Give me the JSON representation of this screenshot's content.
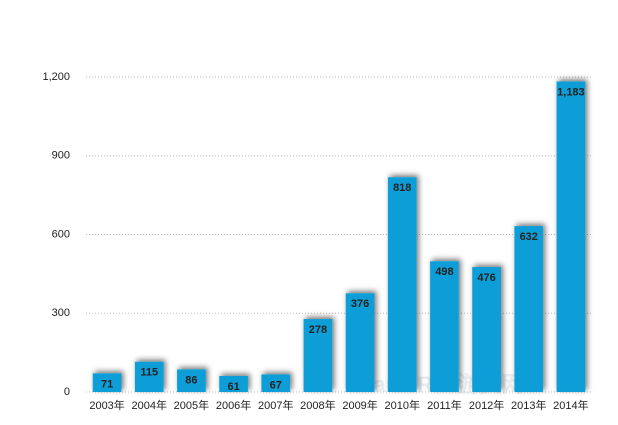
{
  "chart_data": {
    "type": "bar",
    "categories": [
      "2003年",
      "2004年",
      "2005年",
      "2006年",
      "2007年",
      "2008年",
      "2009年",
      "2010年",
      "2011年",
      "2012年",
      "2013年",
      "2014年"
    ],
    "values": [
      71,
      115,
      86,
      61,
      67,
      278,
      376,
      818,
      498,
      476,
      632,
      1183
    ],
    "value_labels": [
      "71",
      "115",
      "86",
      "61",
      "67",
      "278",
      "376",
      "818",
      "498",
      "476",
      "632",
      "1,183"
    ],
    "color": "#0a9ed8",
    "ylim": [
      0,
      1200
    ],
    "yticks": [
      0,
      300,
      600,
      900,
      {
        "value": 1200,
        "label": "1,200"
      }
    ],
    "grid": true,
    "watermark": "GameRes游资网"
  }
}
